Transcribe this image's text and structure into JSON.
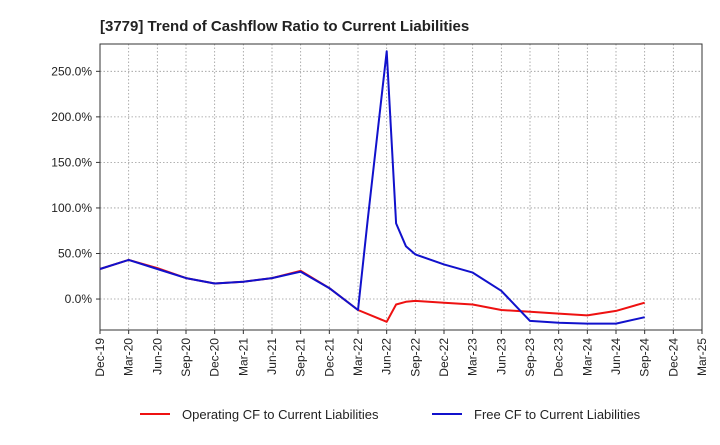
{
  "chart_data": {
    "type": "line",
    "title": "[3779]  Trend of Cashflow Ratio to Current Liabilities",
    "xlabel": "",
    "ylabel": "",
    "x_tick_labels": [
      "Dec-19",
      "Mar-20",
      "Jun-20",
      "Sep-20",
      "Dec-20",
      "Mar-21",
      "Jun-21",
      "Sep-21",
      "Dec-21",
      "Mar-22",
      "Jun-22",
      "Sep-22",
      "Dec-22",
      "Mar-23",
      "Jun-23",
      "Sep-23",
      "Dec-23",
      "Mar-24",
      "Jun-24",
      "Sep-24",
      "Dec-24",
      "Mar-25"
    ],
    "y_tick_labels": [
      "0.0%",
      "50.0%",
      "100.0%",
      "150.0%",
      "200.0%",
      "250.0%"
    ],
    "y_ticks": [
      0,
      50,
      100,
      150,
      200,
      250
    ],
    "ylim": [
      -34,
      280
    ],
    "xlim_quarters": [
      0,
      21
    ],
    "grid": true,
    "legend_position": "bottom",
    "series": [
      {
        "name": "Operating CF to Current Liabilities",
        "color": "#ee1111",
        "points": [
          [
            0,
            33
          ],
          [
            1,
            43
          ],
          [
            2,
            34
          ],
          [
            3,
            23
          ],
          [
            4,
            17
          ],
          [
            5,
            19
          ],
          [
            6,
            23
          ],
          [
            7,
            31
          ],
          [
            8,
            12
          ],
          [
            9,
            -12
          ],
          [
            10,
            -25
          ],
          [
            10.33,
            -6
          ],
          [
            10.67,
            -3
          ],
          [
            11,
            -2
          ],
          [
            12,
            -4
          ],
          [
            13,
            -6
          ],
          [
            14,
            -12
          ],
          [
            15,
            -14
          ],
          [
            16,
            -16
          ],
          [
            17,
            -18
          ],
          [
            18,
            -13
          ],
          [
            19,
            -4
          ]
        ]
      },
      {
        "name": "Free CF to Current Liabilities",
        "color": "#1111cc",
        "points": [
          [
            0,
            33
          ],
          [
            1,
            43
          ],
          [
            2,
            33
          ],
          [
            3,
            23
          ],
          [
            4,
            17
          ],
          [
            5,
            19
          ],
          [
            6,
            23
          ],
          [
            7,
            30
          ],
          [
            8,
            12
          ],
          [
            9,
            -12
          ],
          [
            9.33,
            85
          ],
          [
            10,
            272
          ],
          [
            10.33,
            83
          ],
          [
            10.67,
            58
          ],
          [
            11,
            49
          ],
          [
            12,
            38
          ],
          [
            13,
            29
          ],
          [
            14,
            9
          ],
          [
            15,
            -24
          ],
          [
            16,
            -26
          ],
          [
            17,
            -27
          ],
          [
            18,
            -27
          ],
          [
            19,
            -20
          ]
        ]
      }
    ]
  }
}
